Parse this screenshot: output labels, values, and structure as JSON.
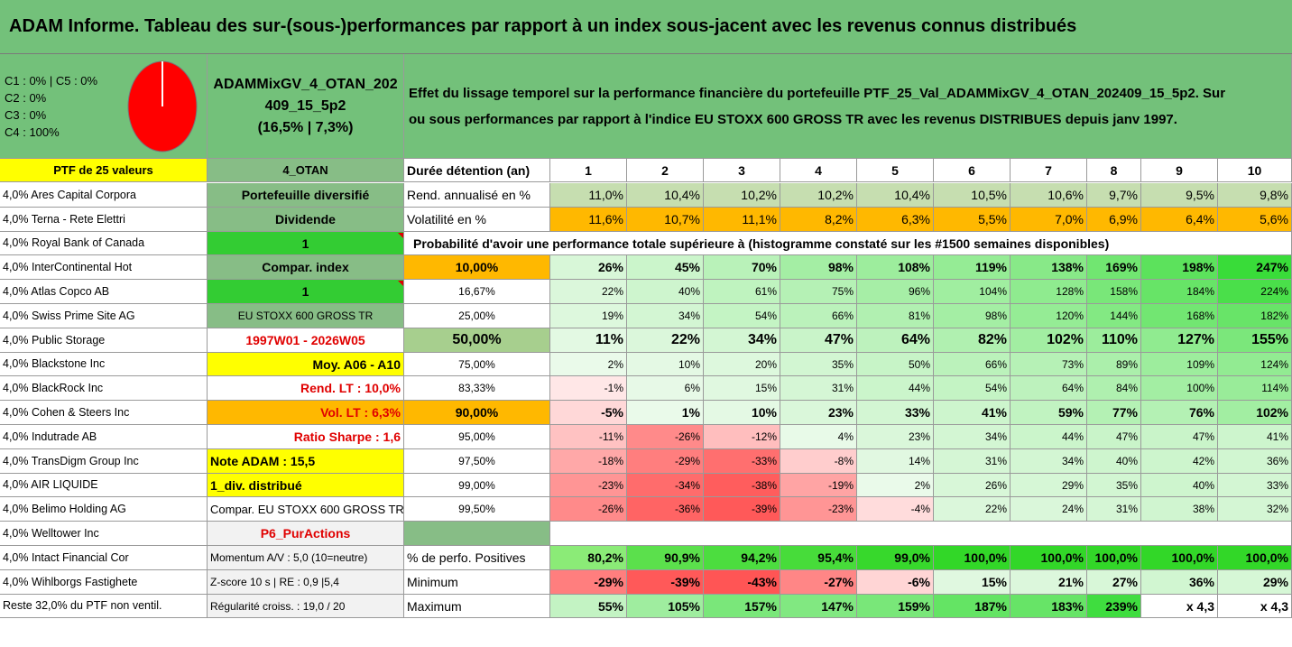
{
  "title": "ADAM Informe. Tableau des sur-(sous-)performances par rapport à un index sous-jacent avec les revenus connus distribués",
  "classes": [
    "C1 : 0% | C5 : 0%",
    "C2 : 0%",
    "C3 : 0%",
    "C4 : 100%"
  ],
  "portfolio_name_lines": [
    "ADAMMixGV_4_OTAN_202",
    "409_15_5p2",
    "(16,5% | 7,3%)"
  ],
  "description_lines": [
    "Effet du lissage temporel sur la performance financière du portefeuille PTF_25_Val_ADAMMixGV_4_OTAN_202409_15_5p2. Sur",
    "ou sous performances par rapport à l'indice EU STOXX 600 GROSS TR avec les revenus DISTRIBUES depuis janv 1997."
  ],
  "ptf_label": "PTF de 25 valeurs",
  "ptf_code": "4_OTAN",
  "duration_label": "Durée détention (an)",
  "years": [
    "1",
    "2",
    "3",
    "4",
    "5",
    "6",
    "7",
    "8",
    "9",
    "10"
  ],
  "returns_label": "Rend. annualisé en %",
  "returns": [
    "11,0%",
    "10,4%",
    "10,2%",
    "10,2%",
    "10,4%",
    "10,5%",
    "10,6%",
    "9,7%",
    "9,5%",
    "9,8%"
  ],
  "volatility_label": "Volatilité en %",
  "volatility": [
    "11,6%",
    "10,7%",
    "11,1%",
    "8,2%",
    "6,3%",
    "5,5%",
    "7,0%",
    "6,9%",
    "6,4%",
    "5,6%"
  ],
  "prob_header": "Probabilité d'avoir une performance totale supérieure à (histogramme constaté sur les #1500 semaines disponibles)",
  "holdings": [
    "4,0% Ares Capital Corpora",
    "4,0% Terna - Rete Elettri",
    "4,0% Royal Bank of Canada",
    "4,0% InterContinental Hot",
    "4,0% Atlas Copco AB",
    "4,0% Swiss Prime Site AG",
    "4,0% Public Storage",
    "4,0% Blackstone Inc",
    "4,0% BlackRock Inc",
    "4,0% Cohen & Steers Inc",
    "4,0% Indutrade AB",
    "4,0% TransDigm Group Inc",
    "4,0% AIR LIQUIDE",
    "4,0% Belimo Holding AG",
    "4,0% Welltower Inc",
    "4,0% Intact Financial Cor",
    "4,0% Wihlborgs Fastighete",
    "Reste 32,0% du PTF non ventil."
  ],
  "info": [
    "Portefeuille diversifié",
    "Dividende",
    "1",
    "Compar. index",
    "1",
    "EU STOXX 600 GROSS TR",
    "1997W01 - 2026W05",
    "Moy. A06 - A10",
    "Rend. LT : 10,0%",
    "Vol. LT : 6,3%",
    "Ratio Sharpe : 1,6",
    "Note ADAM : 15,5",
    "1_div. distribué",
    "Compar. EU STOXX 600 GROSS TR",
    "P6_PurActions",
    "Momentum A/V : 5,0 (10=neutre)",
    "Z-score 10 s | RE : 0,9 |5,4",
    "Régularité croiss. : 19,0 / 20"
  ],
  "prob_rows": [
    {
      "threshold": "10,00%",
      "values": [
        "26%",
        "45%",
        "70%",
        "98%",
        "108%",
        "119%",
        "138%",
        "169%",
        "198%",
        "247%"
      ]
    },
    {
      "threshold": "16,67%",
      "values": [
        "22%",
        "40%",
        "61%",
        "75%",
        "96%",
        "104%",
        "128%",
        "158%",
        "184%",
        "224%"
      ]
    },
    {
      "threshold": "25,00%",
      "values": [
        "19%",
        "34%",
        "54%",
        "66%",
        "81%",
        "98%",
        "120%",
        "144%",
        "168%",
        "182%"
      ]
    },
    {
      "threshold": "50,00%",
      "values": [
        "11%",
        "22%",
        "34%",
        "47%",
        "64%",
        "82%",
        "102%",
        "110%",
        "127%",
        "155%"
      ]
    },
    {
      "threshold": "75,00%",
      "values": [
        "2%",
        "10%",
        "20%",
        "35%",
        "50%",
        "66%",
        "73%",
        "89%",
        "109%",
        "124%"
      ]
    },
    {
      "threshold": "83,33%",
      "values": [
        "-1%",
        "6%",
        "15%",
        "31%",
        "44%",
        "54%",
        "64%",
        "84%",
        "100%",
        "114%"
      ]
    },
    {
      "threshold": "90,00%",
      "values": [
        "-5%",
        "1%",
        "10%",
        "23%",
        "33%",
        "41%",
        "59%",
        "77%",
        "76%",
        "102%"
      ]
    },
    {
      "threshold": "95,00%",
      "values": [
        "-11%",
        "-26%",
        "-12%",
        "4%",
        "23%",
        "34%",
        "44%",
        "47%",
        "47%",
        "41%"
      ]
    },
    {
      "threshold": "97,50%",
      "values": [
        "-18%",
        "-29%",
        "-33%",
        "-8%",
        "14%",
        "31%",
        "34%",
        "40%",
        "42%",
        "36%"
      ]
    },
    {
      "threshold": "99,00%",
      "values": [
        "-23%",
        "-34%",
        "-38%",
        "-19%",
        "2%",
        "26%",
        "29%",
        "35%",
        "40%",
        "33%"
      ]
    },
    {
      "threshold": "99,50%",
      "values": [
        "-26%",
        "-36%",
        "-39%",
        "-23%",
        "-4%",
        "22%",
        "24%",
        "31%",
        "38%",
        "32%"
      ]
    }
  ],
  "stats": [
    {
      "label": "% de perfo. Positives",
      "values": [
        "80,2%",
        "90,9%",
        "94,2%",
        "95,4%",
        "99,0%",
        "100,0%",
        "100,0%",
        "100,0%",
        "100,0%",
        "100,0%"
      ]
    },
    {
      "label": "Minimum",
      "values": [
        "-29%",
        "-39%",
        "-43%",
        "-27%",
        "-6%",
        "15%",
        "21%",
        "27%",
        "36%",
        "29%"
      ]
    },
    {
      "label": "Maximum",
      "values": [
        "55%",
        "105%",
        "157%",
        "147%",
        "159%",
        "187%",
        "183%",
        "239%",
        "x 4,3",
        "x 4,3"
      ]
    }
  ],
  "colors": {
    "title_bg": "#73c17a",
    "header_bg": "#73c17a",
    "label_green": "#87bd86",
    "bright_green": "#33cc33",
    "yellow": "#ffff00",
    "orange": "#ffb800",
    "light_olive": "#c6deb0",
    "grey_cell": "#f2f2f2"
  },
  "pie": {
    "C1": 0,
    "C2": 0,
    "C3": 0,
    "C4": 100,
    "C5": 0
  }
}
